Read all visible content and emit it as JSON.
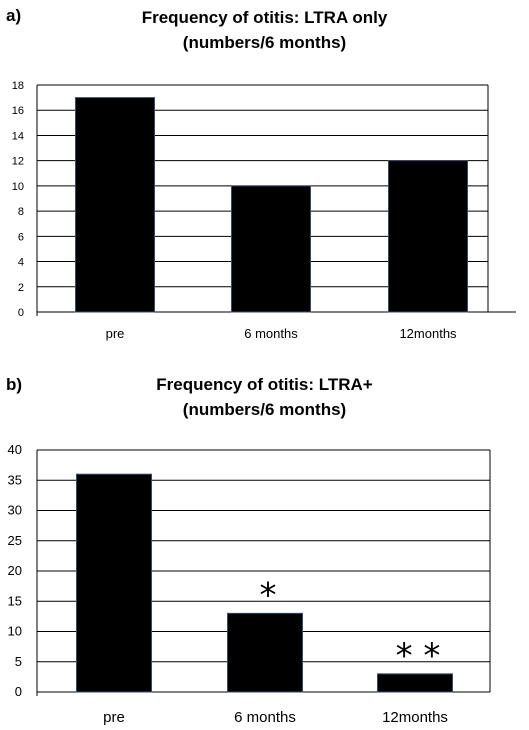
{
  "panels": [
    {
      "label": "a)",
      "title_line1": "Frequency of otitis:  LTRA only",
      "title_line2": "(numbers/6 months)"
    },
    {
      "label": "b)",
      "title_line1": "Frequency of otitis:  LTRA+",
      "title_line2": "(numbers/6  months)"
    }
  ],
  "chart_data": [
    {
      "type": "bar",
      "title": "Frequency of otitis:  LTRA only (numbers/6 months)",
      "categories": [
        "pre",
        "6 months",
        "12months"
      ],
      "values": [
        17,
        10,
        12
      ],
      "ylim": [
        0,
        18
      ],
      "yticks": [
        0,
        2,
        4,
        6,
        8,
        10,
        12,
        14,
        16,
        18
      ],
      "grid": true,
      "bar_color": "#000000"
    },
    {
      "type": "bar",
      "title": "Frequency of otitis:  LTRA+ (numbers/6  months)",
      "categories": [
        "pre",
        "6 months",
        "12months"
      ],
      "values": [
        36,
        13,
        3
      ],
      "ylim": [
        0,
        40
      ],
      "yticks": [
        0,
        5,
        10,
        15,
        20,
        25,
        30,
        35,
        40
      ],
      "grid": true,
      "bar_color": "#000000",
      "annotations": [
        "",
        "*",
        "* *"
      ]
    }
  ]
}
